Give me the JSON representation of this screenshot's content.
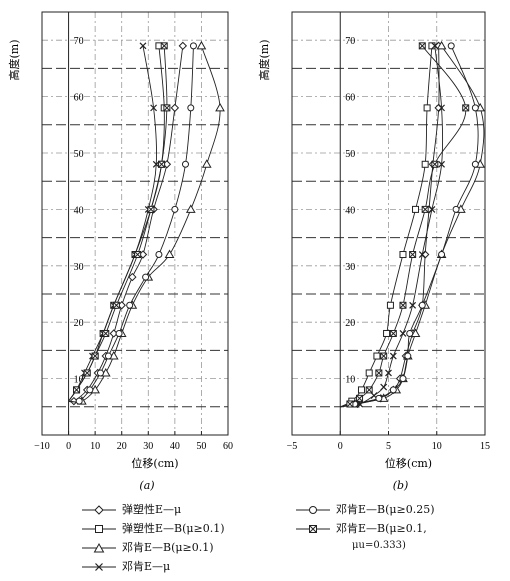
{
  "chart_data": [
    {
      "id": "a",
      "type": "line",
      "panel_label": "(a)",
      "xlabel": "位移(cm)",
      "ylabel": "高度(m)",
      "xlim": [
        -10,
        60
      ],
      "ylim": [
        0,
        75
      ],
      "xticks": [
        -10,
        0,
        10,
        20,
        30,
        40,
        50,
        60
      ],
      "yticks": [
        10,
        20,
        30,
        40,
        50,
        60,
        70
      ],
      "dashed_y": [
        5,
        15,
        25,
        35,
        45,
        55,
        65
      ],
      "series": [
        {
          "name": "弹塑性E—μ",
          "marker": "diamond",
          "points": [
            [
              0,
              6
            ],
            [
              2,
              6
            ],
            [
              7,
              8
            ],
            [
              11,
              11
            ],
            [
              14,
              14
            ],
            [
              17,
              18
            ],
            [
              20,
              23
            ],
            [
              24,
              28
            ],
            [
              28,
              32
            ],
            [
              32,
              40
            ],
            [
              37,
              48
            ],
            [
              40,
              58
            ],
            [
              43,
              69
            ]
          ]
        },
        {
          "name": "弹塑性E—B(μ≥0.1)",
          "marker": "square",
          "points": [
            [
              0,
              6
            ],
            [
              3,
              8
            ],
            [
              7,
              11
            ],
            [
              10,
              14
            ],
            [
              13,
              18
            ],
            [
              17,
              23
            ],
            [
              25,
              32
            ],
            [
              31,
              40
            ],
            [
              35,
              48
            ],
            [
              36,
              58
            ],
            [
              34,
              69
            ]
          ]
        },
        {
          "name": "邓肯E—B(μ≥0.1)",
          "marker": "triangle",
          "points": [
            [
              0,
              6
            ],
            [
              5,
              6
            ],
            [
              10,
              8
            ],
            [
              14,
              11
            ],
            [
              17,
              14
            ],
            [
              20,
              18
            ],
            [
              24,
              23
            ],
            [
              30,
              28
            ],
            [
              38,
              32
            ],
            [
              46,
              40
            ],
            [
              52,
              48
            ],
            [
              57,
              58
            ],
            [
              50,
              69
            ]
          ]
        },
        {
          "name": "邓肯E—μ",
          "marker": "x",
          "points": [
            [
              0,
              6
            ],
            [
              3,
              8
            ],
            [
              6,
              11
            ],
            [
              9,
              14
            ],
            [
              13,
              18
            ],
            [
              17,
              23
            ],
            [
              25,
              32
            ],
            [
              30,
              40
            ],
            [
              33,
              48
            ],
            [
              32,
              58
            ],
            [
              28,
              69
            ]
          ]
        },
        {
          "name": "邓肯E—B(μ≥0.25)",
          "marker": "circle",
          "points": [
            [
              0,
              6
            ],
            [
              4,
              6
            ],
            [
              8,
              8
            ],
            [
              12,
              11
            ],
            [
              15,
              14
            ],
            [
              19,
              18
            ],
            [
              23,
              23
            ],
            [
              29,
              28
            ],
            [
              34,
              32
            ],
            [
              40,
              40
            ],
            [
              44,
              48
            ],
            [
              46,
              58
            ],
            [
              47,
              69
            ]
          ]
        },
        {
          "name": "邓肯E—B(μ≥0.1, μu=0.333)",
          "marker": "star",
          "points": [
            [
              0,
              6
            ],
            [
              3,
              8
            ],
            [
              7,
              11
            ],
            [
              10,
              14
            ],
            [
              14,
              18
            ],
            [
              18,
              23
            ],
            [
              26,
              32
            ],
            [
              31,
              40
            ],
            [
              35,
              48
            ],
            [
              37,
              58
            ],
            [
              36,
              69
            ]
          ]
        }
      ]
    },
    {
      "id": "b",
      "type": "line",
      "panel_label": "(b)",
      "xlabel": "位移(cm)",
      "ylabel": "高度(m)",
      "xlim": [
        -5,
        15
      ],
      "ylim": [
        0,
        75
      ],
      "xticks": [
        -5,
        0,
        5,
        10,
        15
      ],
      "yticks": [
        10,
        20,
        30,
        40,
        50,
        60,
        70
      ],
      "dashed_y": [
        5,
        15,
        25,
        35,
        45,
        55,
        65
      ],
      "series": [
        {
          "name": "弹塑性E—μ",
          "marker": "diamond",
          "points": [
            [
              0,
              5
            ],
            [
              1.8,
              5.5
            ],
            [
              4.2,
              6.5
            ],
            [
              5.5,
              8
            ],
            [
              6.2,
              10
            ],
            [
              6.8,
              14
            ],
            [
              7.5,
              18
            ],
            [
              8.5,
              23
            ],
            [
              8.8,
              32
            ],
            [
              9.2,
              40
            ],
            [
              9.6,
              48
            ],
            [
              10.2,
              58
            ],
            [
              10.2,
              69
            ]
          ]
        },
        {
          "name": "弹塑性E—B(μ≥0.1)",
          "marker": "square",
          "points": [
            [
              0,
              5
            ],
            [
              1.2,
              6
            ],
            [
              2.2,
              8
            ],
            [
              3,
              11
            ],
            [
              3.8,
              14
            ],
            [
              4.8,
              18
            ],
            [
              5.2,
              23
            ],
            [
              6.5,
              32
            ],
            [
              7.8,
              40
            ],
            [
              8.8,
              48
            ],
            [
              9,
              58
            ],
            [
              9.5,
              69
            ]
          ]
        },
        {
          "name": "邓肯E—B(μ≥0.1)",
          "marker": "triangle",
          "points": [
            [
              0,
              5
            ],
            [
              1.5,
              5.5
            ],
            [
              4.5,
              6.5
            ],
            [
              5.8,
              8
            ],
            [
              6.5,
              10
            ],
            [
              7,
              14
            ],
            [
              7.8,
              18
            ],
            [
              8.8,
              23
            ],
            [
              10.5,
              32
            ],
            [
              12.5,
              40
            ],
            [
              14.5,
              48
            ],
            [
              14.5,
              58
            ],
            [
              10.5,
              69
            ]
          ]
        },
        {
          "name": "邓肯E—μ",
          "marker": "x",
          "points": [
            [
              0,
              5
            ],
            [
              2,
              5.5
            ],
            [
              3.5,
              7
            ],
            [
              4.5,
              8.5
            ],
            [
              5,
              11
            ],
            [
              5.5,
              14
            ],
            [
              6.5,
              18
            ],
            [
              7.5,
              23
            ],
            [
              8.5,
              32
            ],
            [
              9.5,
              40
            ],
            [
              10.5,
              48
            ],
            [
              10.5,
              58
            ],
            [
              9.8,
              69
            ]
          ]
        },
        {
          "name": "邓肯E—B(μ≥0.25)",
          "marker": "circle",
          "points": [
            [
              0,
              5
            ],
            [
              1.5,
              5.5
            ],
            [
              4,
              6.5
            ],
            [
              5.5,
              8
            ],
            [
              6.5,
              10
            ],
            [
              7,
              14
            ],
            [
              7.2,
              18
            ],
            [
              8.5,
              23
            ],
            [
              10.5,
              32
            ],
            [
              12,
              40
            ],
            [
              14,
              48
            ],
            [
              14,
              58
            ],
            [
              11.5,
              69
            ]
          ]
        },
        {
          "name": "邓肯E—B(μ≥0.1, μu=0.333)",
          "marker": "star",
          "points": [
            [
              0,
              5
            ],
            [
              1,
              5.5
            ],
            [
              2,
              6.5
            ],
            [
              3,
              8
            ],
            [
              4,
              11
            ],
            [
              4.5,
              14
            ],
            [
              5.5,
              18
            ],
            [
              6.5,
              23
            ],
            [
              7.5,
              32
            ],
            [
              8.8,
              40
            ],
            [
              9.8,
              48
            ],
            [
              13,
              58
            ],
            [
              8.5,
              69
            ]
          ]
        }
      ]
    }
  ],
  "legend": {
    "items": [
      {
        "marker": "diamond",
        "label": "弹塑性E—μ"
      },
      {
        "marker": "square",
        "label": "弹塑性E—B(μ≥0.1)"
      },
      {
        "marker": "triangle",
        "label": "邓肯E—B(μ≥0.1)"
      },
      {
        "marker": "x",
        "label": "邓肯E—μ"
      },
      {
        "marker": "circle",
        "label": "邓肯E—B(μ≥0.25)"
      },
      {
        "marker": "star",
        "label": "邓肯E—B(μ≥0.1,"
      }
    ],
    "sub_label": "μu=0.333)"
  }
}
